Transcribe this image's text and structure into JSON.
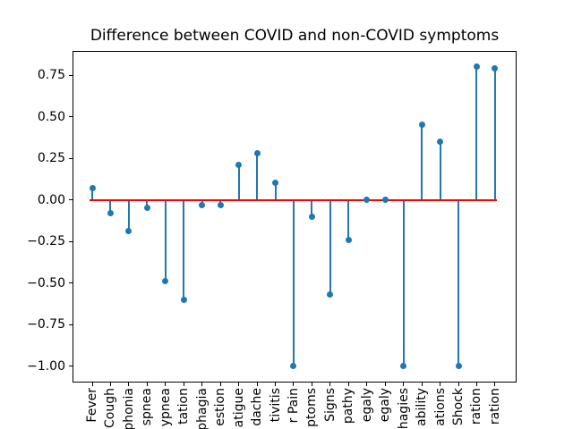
{
  "chart_data": {
    "type": "stem",
    "title": "Difference between COVID and non-COVID symptoms",
    "categories": [
      "Fever",
      "Cough",
      "phonia",
      "spnea",
      "ypnea",
      "tation",
      "phagia",
      "estion",
      "atigue",
      "dache",
      "tivitis",
      "r Pain",
      "ptoms",
      "Signs",
      "pathy",
      "egaly",
      "egaly",
      "hagies",
      "ability",
      "ations",
      "Shock",
      "ration",
      "ration"
    ],
    "values": [
      0.07,
      -0.08,
      -0.19,
      -0.05,
      -0.49,
      -0.6,
      -0.03,
      -0.03,
      0.21,
      0.28,
      0.1,
      -1.0,
      -0.1,
      -0.57,
      -0.24,
      0.0,
      0.0,
      -1.0,
      0.45,
      0.35,
      -1.0,
      0.8,
      0.79
    ],
    "baseline_value": 0.0,
    "ylim": [
      -1.09,
      0.89
    ],
    "yticks": {
      "values": [
        0.75,
        0.5,
        0.25,
        0.0,
        -0.25,
        -0.5,
        -0.75,
        -1.0
      ],
      "labels": [
        "0.75",
        "0.50",
        "0.25",
        "0.00",
        "−0.25",
        "−0.50",
        "−0.75",
        "−1.00"
      ]
    },
    "grid": false,
    "legend": null,
    "x_labels_rotation": 90,
    "x_labels_truncated_at_bottom_edge": true,
    "colors": {
      "stem": "#1f77b4",
      "marker": "#1f77b4",
      "baseline": "#ff0000",
      "axis": "#000000",
      "background": "#ffffff"
    }
  }
}
